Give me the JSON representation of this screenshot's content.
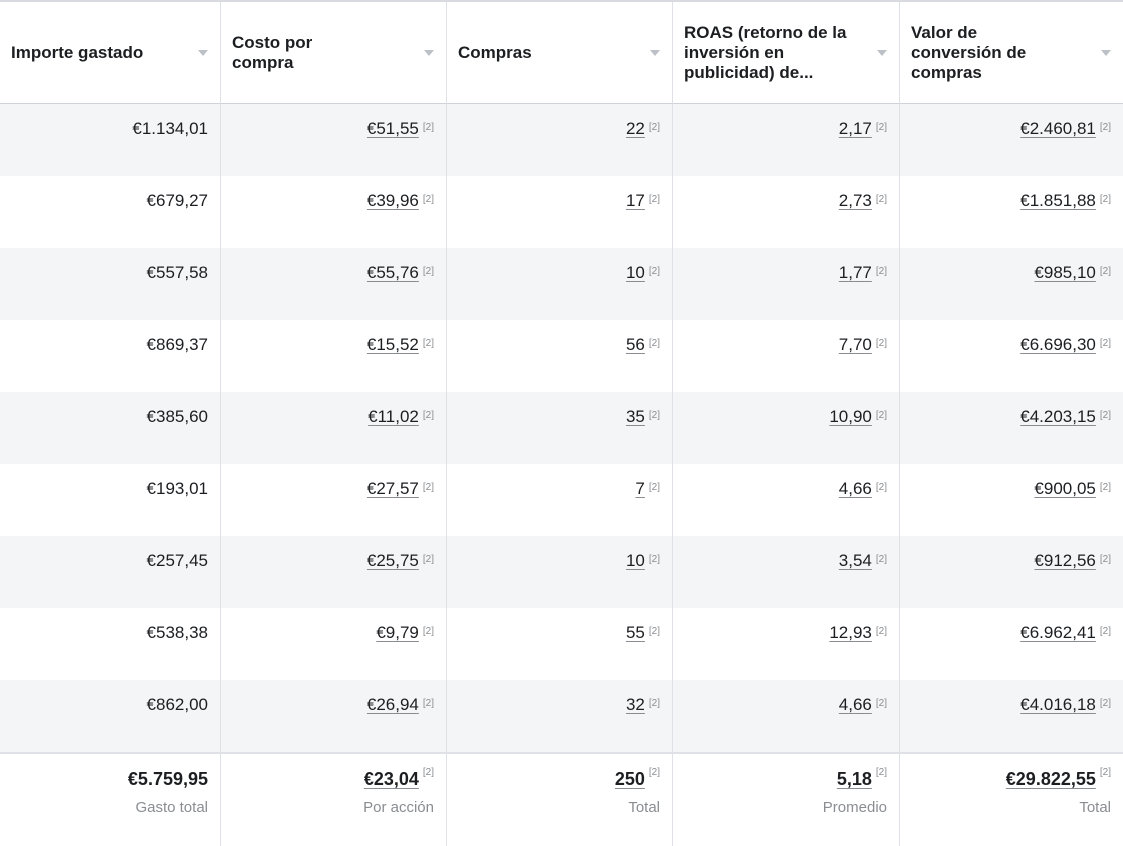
{
  "columns": [
    {
      "label": "Importe gastado"
    },
    {
      "label": "Costo por compra"
    },
    {
      "label": "Compras"
    },
    {
      "label": "ROAS (retorno de la inversión en publicidad) de..."
    },
    {
      "label": "Valor de conversión de compras"
    }
  ],
  "footnote_marker": "[2]",
  "rows": [
    {
      "spent": "€1.134,01",
      "cost_per_purchase": "€51,55",
      "purchases": "22",
      "roas": "2,17",
      "conversion_value": "€2.460,81"
    },
    {
      "spent": "€679,27",
      "cost_per_purchase": "€39,96",
      "purchases": "17",
      "roas": "2,73",
      "conversion_value": "€1.851,88"
    },
    {
      "spent": "€557,58",
      "cost_per_purchase": "€55,76",
      "purchases": "10",
      "roas": "1,77",
      "conversion_value": "€985,10"
    },
    {
      "spent": "€869,37",
      "cost_per_purchase": "€15,52",
      "purchases": "56",
      "roas": "7,70",
      "conversion_value": "€6.696,30"
    },
    {
      "spent": "€385,60",
      "cost_per_purchase": "€11,02",
      "purchases": "35",
      "roas": "10,90",
      "conversion_value": "€4.203,15"
    },
    {
      "spent": "€193,01",
      "cost_per_purchase": "€27,57",
      "purchases": "7",
      "roas": "4,66",
      "conversion_value": "€900,05"
    },
    {
      "spent": "€257,45",
      "cost_per_purchase": "€25,75",
      "purchases": "10",
      "roas": "3,54",
      "conversion_value": "€912,56"
    },
    {
      "spent": "€538,38",
      "cost_per_purchase": "€9,79",
      "purchases": "55",
      "roas": "12,93",
      "conversion_value": "€6.962,41"
    },
    {
      "spent": "€862,00",
      "cost_per_purchase": "€26,94",
      "purchases": "32",
      "roas": "4,66",
      "conversion_value": "€4.016,18"
    }
  ],
  "totals": {
    "spent": {
      "value": "€5.759,95",
      "label": "Gasto total"
    },
    "cost_per_purchase": {
      "value": "€23,04",
      "label": "Por acción"
    },
    "purchases": {
      "value": "250",
      "label": "Total"
    },
    "roas": {
      "value": "5,18",
      "label": "Promedio"
    },
    "conversion_value": {
      "value": "€29.822,55",
      "label": "Total"
    }
  },
  "colors": {
    "row_shade": "#f4f5f7",
    "text": "#1c1e21",
    "muted": "#8a8d91"
  }
}
